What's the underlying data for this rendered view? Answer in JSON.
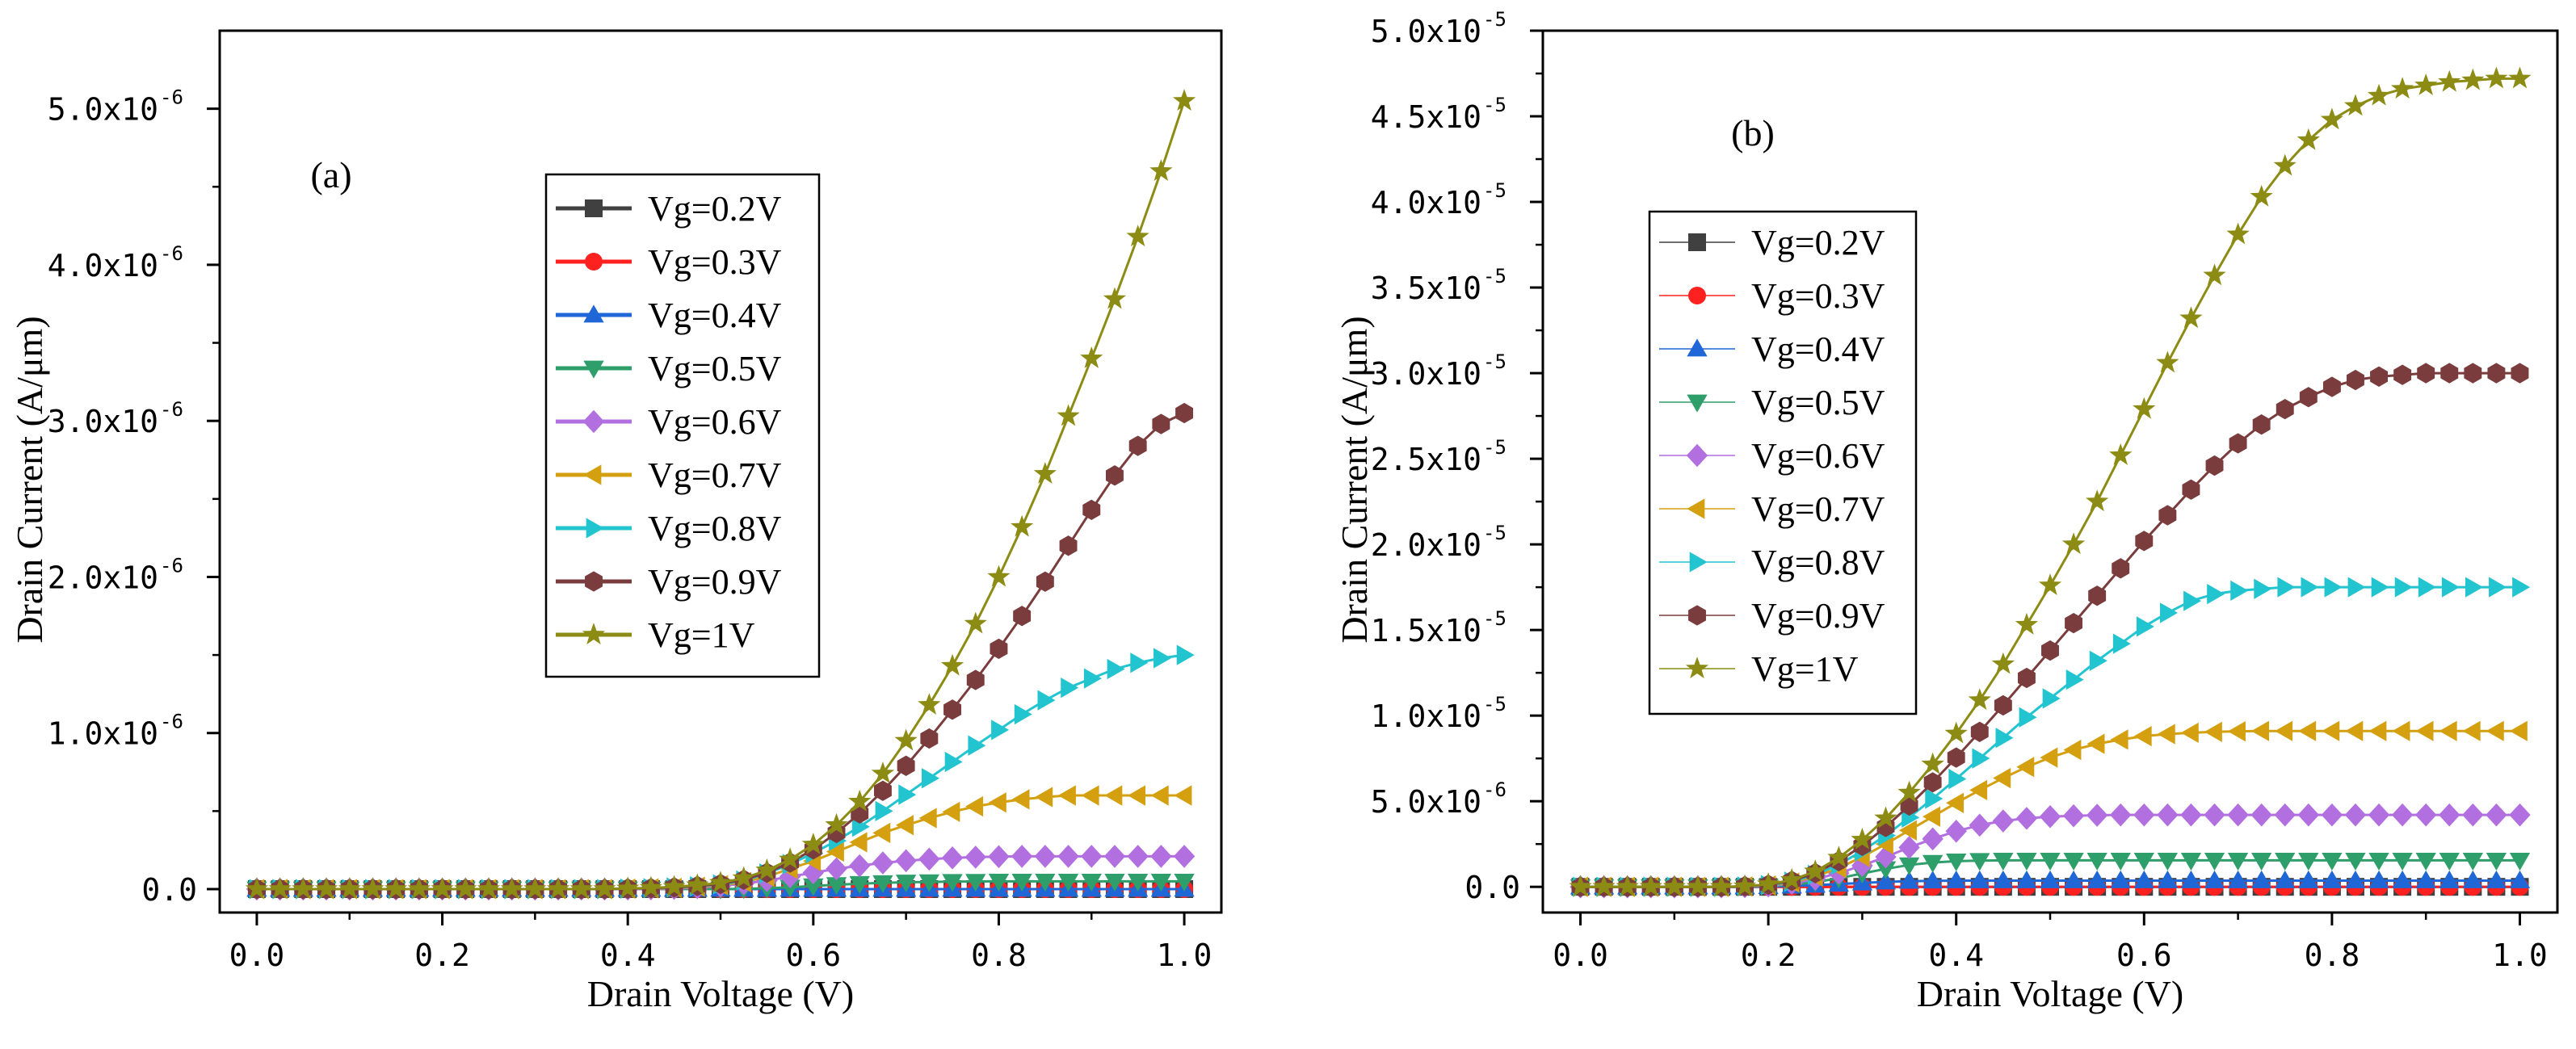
{
  "chart_data": [
    {
      "type": "line",
      "panel_label": "(a)",
      "title": "",
      "xlabel": "Drain Voltage (V)",
      "ylabel": "Drain Current (A/μm)",
      "xlim": [
        -0.04,
        1.04
      ],
      "ylim": [
        -1.5e-07,
        5.5e-06
      ],
      "xticks": [
        0.0,
        0.2,
        0.4,
        0.6,
        0.8,
        1.0
      ],
      "xtick_labels": [
        "0.0",
        "0.2",
        "0.4",
        "0.6",
        "0.8",
        "1.0"
      ],
      "yticks": [
        0,
        1e-06,
        2e-06,
        3e-06,
        4e-06,
        5e-06
      ],
      "ytick_labels": [
        {
          "mant": "0.0",
          "exp": ""
        },
        {
          "mant": "1.0x10",
          "exp": "-6"
        },
        {
          "mant": "2.0x10",
          "exp": "-6"
        },
        {
          "mant": "3.0x10",
          "exp": "-6"
        },
        {
          "mant": "4.0x10",
          "exp": "-6"
        },
        {
          "mant": "5.0x10",
          "exp": "-6"
        }
      ],
      "legend_placement": "top-center",
      "legend_style": "line",
      "x": [
        0.0,
        0.025,
        0.05,
        0.075,
        0.1,
        0.125,
        0.15,
        0.175,
        0.2,
        0.225,
        0.25,
        0.275,
        0.3,
        0.325,
        0.35,
        0.375,
        0.4,
        0.425,
        0.45,
        0.475,
        0.5,
        0.525,
        0.55,
        0.575,
        0.6,
        0.625,
        0.65,
        0.675,
        0.7,
        0.725,
        0.75,
        0.775,
        0.8,
        0.825,
        0.85,
        0.875,
        0.9,
        0.925,
        0.95,
        0.975,
        1.0
      ],
      "series": [
        {
          "name": "Vg=0.2V",
          "color": "#404040",
          "marker": "square",
          "values": [
            0,
            0,
            0,
            0,
            0,
            0,
            0,
            0,
            0,
            0,
            0,
            0,
            0,
            0,
            0,
            0,
            0,
            0,
            0,
            0,
            0,
            0,
            0,
            0,
            0,
            0,
            0,
            0,
            0,
            0,
            0,
            0,
            0,
            0,
            0,
            0,
            0,
            0,
            0,
            0,
            0
          ]
        },
        {
          "name": "Vg=0.3V",
          "color": "#ff2020",
          "marker": "circle",
          "values": [
            0,
            0,
            0,
            0,
            0,
            0,
            0,
            0,
            0,
            0,
            0,
            0,
            0,
            0,
            0,
            0,
            0,
            0,
            0,
            0,
            0,
            0,
            0,
            0,
            0,
            0,
            0,
            0,
            0,
            0,
            0,
            0,
            0,
            0,
            0,
            0,
            0,
            0,
            0,
            0,
            0
          ]
        },
        {
          "name": "Vg=0.4V",
          "color": "#1f66d6",
          "marker": "triangle-up",
          "values": [
            0,
            0,
            0,
            0,
            0,
            0,
            0,
            0,
            0,
            0,
            0,
            0,
            0,
            0,
            0,
            0,
            0,
            0,
            0,
            0,
            0,
            0,
            0,
            0,
            0,
            0,
            0,
            0,
            0,
            0,
            0,
            0,
            0,
            0,
            0,
            0,
            0,
            0,
            0,
            0,
            0
          ]
        },
        {
          "name": "Vg=0.5V",
          "color": "#2e9e6a",
          "marker": "triangle-down",
          "values": [
            0,
            0,
            0,
            0,
            0,
            0,
            0,
            0,
            0,
            0,
            0,
            0,
            0,
            0,
            0,
            0,
            0,
            0,
            0,
            0,
            0,
            2e-09,
            6e-09,
            1.2e-08,
            2e-08,
            2.8e-08,
            3.5e-08,
            4e-08,
            4.4e-08,
            4.6e-08,
            4.8e-08,
            4.9e-08,
            5e-08,
            5e-08,
            5e-08,
            5e-08,
            5e-08,
            5e-08,
            5e-08,
            5e-08,
            5e-08
          ]
        },
        {
          "name": "Vg=0.6V",
          "color": "#b26fe0",
          "marker": "diamond",
          "values": [
            0,
            0,
            0,
            0,
            0,
            0,
            0,
            0,
            0,
            0,
            0,
            0,
            0,
            0,
            0,
            0,
            0,
            2e-09,
            5e-09,
            1e-08,
            2e-08,
            3.5e-08,
            5.5e-08,
            8e-08,
            1.05e-07,
            1.3e-07,
            1.5e-07,
            1.68e-07,
            1.82e-07,
            1.92e-07,
            2e-07,
            2.05e-07,
            2.08e-07,
            2.1e-07,
            2.1e-07,
            2.1e-07,
            2.1e-07,
            2.1e-07,
            2.1e-07,
            2.1e-07,
            2.1e-07
          ]
        },
        {
          "name": "Vg=0.7V",
          "color": "#d4a010",
          "marker": "triangle-left",
          "values": [
            0,
            0,
            0,
            0,
            0,
            0,
            0,
            0,
            0,
            0,
            0,
            0,
            0,
            0,
            0,
            0,
            3e-09,
            5e-09,
            8e-09,
            1.5e-08,
            2.5e-08,
            4.5e-08,
            8e-08,
            1.3e-07,
            1.8e-07,
            2.4e-07,
            3e-07,
            3.6e-07,
            4.1e-07,
            4.55e-07,
            4.95e-07,
            5.3e-07,
            5.55e-07,
            5.75e-07,
            5.9e-07,
            6e-07,
            6e-07,
            6e-07,
            6e-07,
            6e-07,
            6e-07
          ]
        },
        {
          "name": "Vg=0.8V",
          "color": "#22c4d0",
          "marker": "triangle-right",
          "values": [
            0,
            0,
            0,
            0,
            0,
            0,
            0,
            0,
            0,
            0,
            0,
            0,
            0,
            0,
            0,
            0,
            3e-09,
            6e-09,
            1e-08,
            1.8e-08,
            3e-08,
            5.5e-08,
            1e-07,
            1.6e-07,
            2.3e-07,
            3.1e-07,
            4e-07,
            5e-07,
            6.05e-07,
            7.1e-07,
            8.15e-07,
            9.2e-07,
            1.02e-06,
            1.12e-06,
            1.21e-06,
            1.29e-06,
            1.35e-06,
            1.41e-06,
            1.45e-06,
            1.48e-06,
            1.5e-06
          ]
        },
        {
          "name": "Vg=0.9V",
          "color": "#7a3c3c",
          "marker": "hexagon",
          "values": [
            0,
            0,
            0,
            0,
            0,
            0,
            0,
            0,
            0,
            0,
            0,
            0,
            0,
            0,
            0,
            0,
            3e-09,
            6e-09,
            1.1e-08,
            2e-08,
            3.3e-08,
            6e-08,
            1.05e-07,
            1.7e-07,
            2.55e-07,
            3.6e-07,
            4.85e-07,
            6.3e-07,
            7.9e-07,
            9.65e-07,
            1.15e-06,
            1.34e-06,
            1.54e-06,
            1.75e-06,
            1.97e-06,
            2.2e-06,
            2.43e-06,
            2.65e-06,
            2.84e-06,
            2.98e-06,
            3.05e-06
          ]
        },
        {
          "name": "Vg=1V",
          "color": "#8c8c14",
          "marker": "star",
          "values": [
            0,
            0,
            0,
            0,
            0,
            0,
            0,
            0,
            0,
            0,
            0,
            0,
            0,
            0,
            0,
            0,
            4e-09,
            8e-09,
            1.4e-08,
            2.5e-08,
            4e-08,
            7e-08,
            1.2e-07,
            1.9e-07,
            2.85e-07,
            4.1e-07,
            5.6e-07,
            7.4e-07,
            9.5e-07,
            1.18e-06,
            1.43e-06,
            1.7e-06,
            2e-06,
            2.32e-06,
            2.66e-06,
            3.03e-06,
            3.4e-06,
            3.78e-06,
            4.18e-06,
            4.6e-06,
            5.05e-06
          ]
        }
      ]
    },
    {
      "type": "line",
      "panel_label": "(b)",
      "title": "",
      "xlabel": "Drain Voltage (V)",
      "ylabel": "Drain Current (A/μm)",
      "xlim": [
        -0.04,
        1.04
      ],
      "ylim": [
        -1.5e-06,
        5e-05
      ],
      "xticks": [
        0.0,
        0.2,
        0.4,
        0.6,
        0.8,
        1.0
      ],
      "xtick_labels": [
        "0.0",
        "0.2",
        "0.4",
        "0.6",
        "0.8",
        "1.0"
      ],
      "yticks": [
        0,
        5e-06,
        1e-05,
        1.5e-05,
        2e-05,
        2.5e-05,
        3e-05,
        3.5e-05,
        4e-05,
        4.5e-05,
        5e-05
      ],
      "ytick_labels": [
        {
          "mant": "0.0",
          "exp": ""
        },
        {
          "mant": "5.0x10",
          "exp": "-6"
        },
        {
          "mant": "1.0x10",
          "exp": "-5"
        },
        {
          "mant": "1.5x10",
          "exp": "-5"
        },
        {
          "mant": "2.0x10",
          "exp": "-5"
        },
        {
          "mant": "2.5x10",
          "exp": "-5"
        },
        {
          "mant": "3.0x10",
          "exp": "-5"
        },
        {
          "mant": "3.5x10",
          "exp": "-5"
        },
        {
          "mant": "4.0x10",
          "exp": "-5"
        },
        {
          "mant": "4.5x10",
          "exp": "-5"
        },
        {
          "mant": "5.0x10",
          "exp": "-5"
        }
      ],
      "legend_placement": "upper-left",
      "legend_style": "marker",
      "x": [
        0.0,
        0.025,
        0.05,
        0.075,
        0.1,
        0.125,
        0.15,
        0.175,
        0.2,
        0.225,
        0.25,
        0.275,
        0.3,
        0.325,
        0.35,
        0.375,
        0.4,
        0.425,
        0.45,
        0.475,
        0.5,
        0.525,
        0.55,
        0.575,
        0.6,
        0.625,
        0.65,
        0.675,
        0.7,
        0.725,
        0.75,
        0.775,
        0.8,
        0.825,
        0.85,
        0.875,
        0.9,
        0.925,
        0.95,
        0.975,
        1.0
      ],
      "series": [
        {
          "name": "Vg=0.2V",
          "color": "#404040",
          "marker": "square",
          "values": [
            0,
            0,
            0,
            0,
            0,
            0,
            0,
            0,
            0,
            0,
            0,
            0,
            0,
            0,
            0,
            0,
            0,
            0,
            0,
            0,
            0,
            0,
            0,
            0,
            0,
            0,
            0,
            0,
            0,
            0,
            0,
            0,
            0,
            0,
            0,
            0,
            0,
            0,
            0,
            0,
            0
          ]
        },
        {
          "name": "Vg=0.3V",
          "color": "#ff2020",
          "marker": "circle",
          "values": [
            0,
            0,
            0,
            0,
            0,
            0,
            0,
            0,
            0,
            0,
            0,
            0,
            0,
            0,
            0,
            0,
            0,
            0,
            0,
            0,
            0,
            0,
            0,
            0,
            0,
            0,
            0,
            0,
            0,
            0,
            0,
            0,
            0,
            0,
            0,
            0,
            0,
            0,
            0,
            0,
            0
          ]
        },
        {
          "name": "Vg=0.4V",
          "color": "#1f66d6",
          "marker": "triangle-up",
          "values": [
            0,
            0,
            0,
            0,
            0,
            0,
            0,
            0,
            2e-08,
            5e-08,
            1e-07,
            1.6e-07,
            2.3e-07,
            2.9e-07,
            3.3e-07,
            3.5e-07,
            3.6e-07,
            3.6e-07,
            3.6e-07,
            3.6e-07,
            3.6e-07,
            3.6e-07,
            3.6e-07,
            3.6e-07,
            3.6e-07,
            3.6e-07,
            3.6e-07,
            3.6e-07,
            3.6e-07,
            3.6e-07,
            3.6e-07,
            3.6e-07,
            3.6e-07,
            3.6e-07,
            3.6e-07,
            3.6e-07,
            3.6e-07,
            3.6e-07,
            3.6e-07,
            3.6e-07,
            3.6e-07
          ]
        },
        {
          "name": "Vg=0.5V",
          "color": "#2e9e6a",
          "marker": "triangle-down",
          "values": [
            0,
            0,
            0,
            0,
            0,
            0,
            0,
            1e-08,
            4e-08,
            1.2e-07,
            2.8e-07,
            5e-07,
            7.8e-07,
            1.05e-06,
            1.28e-06,
            1.42e-06,
            1.5e-06,
            1.53e-06,
            1.55e-06,
            1.55e-06,
            1.55e-06,
            1.55e-06,
            1.55e-06,
            1.55e-06,
            1.55e-06,
            1.55e-06,
            1.55e-06,
            1.55e-06,
            1.55e-06,
            1.55e-06,
            1.55e-06,
            1.55e-06,
            1.55e-06,
            1.55e-06,
            1.55e-06,
            1.55e-06,
            1.55e-06,
            1.55e-06,
            1.55e-06,
            1.55e-06,
            1.55e-06
          ]
        },
        {
          "name": "Vg=0.6V",
          "color": "#b26fe0",
          "marker": "diamond",
          "values": [
            0,
            0,
            0,
            0,
            0,
            0,
            0,
            1e-08,
            6e-08,
            2e-07,
            4.5e-07,
            8e-07,
            1.25e-06,
            1.75e-06,
            2.3e-06,
            2.8e-06,
            3.25e-06,
            3.6e-06,
            3.85e-06,
            4e-06,
            4.1e-06,
            4.15e-06,
            4.18e-06,
            4.2e-06,
            4.2e-06,
            4.2e-06,
            4.2e-06,
            4.2e-06,
            4.2e-06,
            4.2e-06,
            4.2e-06,
            4.2e-06,
            4.2e-06,
            4.2e-06,
            4.2e-06,
            4.2e-06,
            4.2e-06,
            4.2e-06,
            4.2e-06,
            4.2e-06,
            4.2e-06
          ]
        },
        {
          "name": "Vg=0.7V",
          "color": "#d4a010",
          "marker": "triangle-left",
          "values": [
            0,
            0,
            0,
            0,
            0,
            0,
            0,
            2e-08,
            8e-08,
            2.5e-07,
            6e-07,
            1.1e-06,
            1.75e-06,
            2.5e-06,
            3.3e-06,
            4.1e-06,
            4.9e-06,
            5.65e-06,
            6.35e-06,
            7e-06,
            7.55e-06,
            8e-06,
            8.35e-06,
            8.6e-06,
            8.8e-06,
            8.92e-06,
            9e-06,
            9.05e-06,
            9.08e-06,
            9.1e-06,
            9.1e-06,
            9.1e-06,
            9.1e-06,
            9.1e-06,
            9.1e-06,
            9.1e-06,
            9.1e-06,
            9.1e-06,
            9.1e-06,
            9.1e-06,
            9.1e-06
          ]
        },
        {
          "name": "Vg=0.8V",
          "color": "#22c4d0",
          "marker": "triangle-right",
          "values": [
            0,
            0,
            0,
            0,
            0,
            0,
            0,
            2e-08,
            1e-07,
            3e-07,
            7e-07,
            1.3e-06,
            2.1e-06,
            3e-06,
            4.05e-06,
            5.15e-06,
            6.3e-06,
            7.5e-06,
            8.7e-06,
            9.9e-06,
            1.1e-05,
            1.21e-05,
            1.32e-05,
            1.42e-05,
            1.52e-05,
            1.6e-05,
            1.67e-05,
            1.71e-05,
            1.73e-05,
            1.74e-05,
            1.75e-05,
            1.75e-05,
            1.75e-05,
            1.75e-05,
            1.75e-05,
            1.75e-05,
            1.75e-05,
            1.75e-05,
            1.75e-05,
            1.75e-05,
            1.75e-05
          ]
        },
        {
          "name": "Vg=0.9V",
          "color": "#7a3c3c",
          "marker": "hexagon",
          "values": [
            0,
            0,
            0,
            0,
            0,
            0,
            0,
            3e-08,
            1.2e-07,
            3.5e-07,
            8e-07,
            1.5e-06,
            2.4e-06,
            3.5e-06,
            4.75e-06,
            6.1e-06,
            7.55e-06,
            9.05e-06,
            1.06e-05,
            1.22e-05,
            1.38e-05,
            1.54e-05,
            1.7e-05,
            1.86e-05,
            2.02e-05,
            2.17e-05,
            2.32e-05,
            2.46e-05,
            2.59e-05,
            2.7e-05,
            2.79e-05,
            2.86e-05,
            2.92e-05,
            2.96e-05,
            2.98e-05,
            2.99e-05,
            3e-05,
            3e-05,
            3e-05,
            3e-05,
            3e-05
          ]
        },
        {
          "name": "Vg=1V",
          "color": "#8c8c14",
          "marker": "star",
          "values": [
            0,
            0,
            0,
            0,
            0,
            0,
            0,
            3e-08,
            1.5e-07,
            4e-07,
            9e-07,
            1.7e-06,
            2.75e-06,
            4e-06,
            5.5e-06,
            7.15e-06,
            8.95e-06,
            1.09e-05,
            1.3e-05,
            1.53e-05,
            1.76e-05,
            2e-05,
            2.25e-05,
            2.52e-05,
            2.79e-05,
            3.06e-05,
            3.32e-05,
            3.57e-05,
            3.81e-05,
            4.03e-05,
            4.21e-05,
            4.36e-05,
            4.48e-05,
            4.56e-05,
            4.62e-05,
            4.66e-05,
            4.68e-05,
            4.7e-05,
            4.71e-05,
            4.72e-05,
            4.72e-05
          ]
        }
      ]
    }
  ]
}
